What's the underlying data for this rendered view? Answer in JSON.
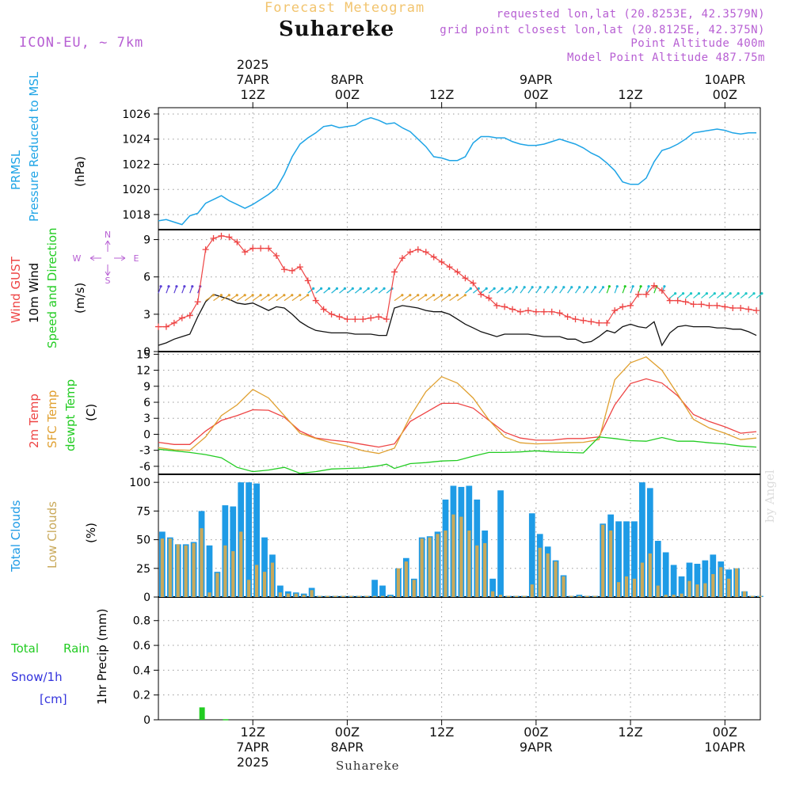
{
  "header": {
    "subtitle": "Forecast Meteogram",
    "location": "Suhareke",
    "model": "ICON-EU, ~ 7km",
    "requested": "requested lon,lat (20.8253E, 42.3579N)",
    "grid_point": "grid point closest lon,lat (20.8125E, 42.375N)",
    "point_altitude": "Point Altitude 400m",
    "model_altitude": "Model Point Altitude 487.75m",
    "watermark": "by Angel",
    "bottom_location": "Suhareke"
  },
  "colors": {
    "pressure": "#1ea4e6",
    "gust": "#ee4444",
    "wind": "#111111",
    "temp2m": "#ee4444",
    "sfc_temp": "#e0a030",
    "dewpt": "#22cc22",
    "total_clouds": "#1e9be6",
    "low_clouds": "#c9a95a",
    "rain": "#22cc22",
    "snow": "#3333dd"
  },
  "time_axis": {
    "top_ticks": [
      {
        "t": 12,
        "lines": [
          "2025",
          "7APR",
          "12Z"
        ]
      },
      {
        "t": 24,
        "lines": [
          "8APR",
          "00Z"
        ]
      },
      {
        "t": 36,
        "lines": [
          "12Z"
        ]
      },
      {
        "t": 48,
        "lines": [
          "9APR",
          "00Z"
        ]
      },
      {
        "t": 60,
        "lines": [
          "12Z"
        ]
      },
      {
        "t": 72,
        "lines": [
          "10APR",
          "00Z"
        ]
      }
    ],
    "bottom_ticks": [
      {
        "t": 12,
        "lines": [
          "12Z",
          "7APR",
          "2025"
        ]
      },
      {
        "t": 24,
        "lines": [
          "00Z",
          "8APR"
        ]
      },
      {
        "t": 36,
        "lines": [
          "12Z"
        ]
      },
      {
        "t": 48,
        "lines": [
          "00Z",
          "9APR"
        ]
      },
      {
        "t": 60,
        "lines": [
          "12Z"
        ]
      },
      {
        "t": 72,
        "lines": [
          "00Z",
          "10APR"
        ]
      }
    ]
  },
  "chart_data": [
    {
      "type": "line",
      "panel": "pressure",
      "labels": [
        "PRMSL",
        "Pressure Reduced to MSL",
        "(hPa)"
      ],
      "x_unit": "hours from 2025-04-07 00Z",
      "ylim": [
        1016.8,
        1026.5
      ],
      "yticks": [
        1018,
        1020,
        1022,
        1024,
        1026
      ],
      "series": [
        {
          "x": [
            0,
            1,
            2,
            3,
            4,
            5,
            6,
            7,
            8,
            9,
            10,
            11,
            12,
            13,
            14,
            15,
            16,
            17,
            18,
            19,
            20,
            21,
            22,
            23,
            24,
            25,
            26,
            27,
            28,
            29,
            30,
            31,
            32,
            33,
            34,
            35,
            36,
            37,
            38,
            39,
            40,
            41,
            42,
            43,
            44,
            45,
            46,
            47,
            48,
            49,
            50,
            51,
            52,
            53,
            54,
            55,
            56,
            57,
            58,
            59,
            60,
            61,
            62,
            63,
            64,
            65,
            66,
            67,
            68,
            69,
            70,
            71,
            72,
            73,
            74,
            75,
            76
          ],
          "y": [
            1017.5,
            1017.6,
            1017.4,
            1017.2,
            1017.9,
            1018.1,
            1018.9,
            1019.2,
            1019.5,
            1019.1,
            1018.8,
            1018.5,
            1018.8,
            1019.2,
            1019.6,
            1020.1,
            1021.2,
            1022.6,
            1023.6,
            1024.1,
            1024.5,
            1025.0,
            1025.1,
            1024.9,
            1025.0,
            1025.1,
            1025.5,
            1025.7,
            1025.5,
            1025.2,
            1025.3,
            1024.9,
            1024.6,
            1024.0,
            1023.4,
            1022.6,
            1022.5,
            1022.3,
            1022.3,
            1022.6,
            1023.7,
            1024.2,
            1024.2,
            1024.1,
            1024.1,
            1023.8,
            1023.6,
            1023.5,
            1023.5,
            1023.6,
            1023.8,
            1024.0,
            1023.8,
            1023.6,
            1023.3,
            1022.9,
            1022.6,
            1022.1,
            1021.5,
            1020.6,
            1020.4,
            1020.4,
            1020.9,
            1022.2,
            1023.1,
            1023.3,
            1023.6,
            1024.0,
            1024.5,
            1024.6,
            1024.7,
            1024.8,
            1024.7,
            1024.5,
            1024.4,
            1024.5,
            1024.5
          ]
        }
      ]
    },
    {
      "type": "line",
      "panel": "wind",
      "labels": [
        "Wind GUST",
        "10m Wind",
        "Speed and Direction",
        "(m/s)"
      ],
      "compass": {
        "n": "N",
        "s": "S",
        "w": "W",
        "e": "E"
      },
      "ylim": [
        0,
        9.8
      ],
      "yticks": [
        0,
        3,
        6,
        9
      ],
      "gust": {
        "x": [
          0,
          1,
          2,
          3,
          4,
          5,
          6,
          7,
          8,
          9,
          10,
          11,
          12,
          13,
          14,
          15,
          16,
          17,
          18,
          19,
          20,
          21,
          22,
          23,
          24,
          25,
          26,
          27,
          28,
          29,
          30,
          31,
          32,
          33,
          34,
          35,
          36,
          37,
          38,
          39,
          40,
          41,
          42,
          43,
          44,
          45,
          46,
          47,
          48,
          49,
          50,
          51,
          52,
          53,
          54,
          55,
          56,
          57,
          58,
          59,
          60,
          61,
          62,
          63,
          64,
          65,
          66,
          67,
          68,
          69,
          70,
          71,
          72,
          73,
          74,
          75,
          76
        ],
        "y": [
          2.0,
          2.0,
          2.3,
          2.7,
          2.9,
          4.0,
          8.2,
          9.1,
          9.3,
          9.2,
          8.8,
          8.0,
          8.3,
          8.3,
          8.3,
          7.7,
          6.6,
          6.5,
          6.8,
          5.7,
          4.1,
          3.4,
          3.0,
          2.8,
          2.6,
          2.6,
          2.6,
          2.7,
          2.8,
          2.6,
          6.4,
          7.5,
          8.0,
          8.2,
          8.0,
          7.6,
          7.2,
          6.8,
          6.4,
          5.9,
          5.5,
          4.6,
          4.3,
          3.7,
          3.6,
          3.4,
          3.2,
          3.3,
          3.2,
          3.2,
          3.2,
          3.1,
          2.8,
          2.6,
          2.5,
          2.4,
          2.3,
          2.3,
          3.3,
          3.6,
          3.7,
          4.6,
          4.6,
          5.3,
          4.9,
          4.1,
          4.1,
          4.0,
          3.8,
          3.8,
          3.7,
          3.7,
          3.6,
          3.5,
          3.5,
          3.4,
          3.3
        ]
      },
      "wind": {
        "x": [
          0,
          1,
          2,
          3,
          4,
          5,
          6,
          7,
          8,
          9,
          10,
          11,
          12,
          13,
          14,
          15,
          16,
          17,
          18,
          19,
          20,
          21,
          22,
          23,
          24,
          25,
          26,
          27,
          28,
          29,
          30,
          31,
          32,
          33,
          34,
          35,
          36,
          37,
          38,
          39,
          40,
          41,
          42,
          43,
          44,
          45,
          46,
          47,
          48,
          49,
          50,
          51,
          52,
          53,
          54,
          55,
          56,
          57,
          58,
          59,
          60,
          61,
          62,
          63,
          64,
          65,
          66,
          67,
          68,
          69,
          70,
          71,
          72,
          73,
          74,
          75,
          76
        ],
        "y": [
          0.5,
          0.7,
          1.0,
          1.2,
          1.4,
          2.8,
          4.0,
          4.6,
          4.4,
          4.2,
          3.9,
          3.8,
          3.9,
          3.6,
          3.3,
          3.6,
          3.5,
          3.0,
          2.4,
          2.0,
          1.7,
          1.6,
          1.5,
          1.5,
          1.5,
          1.4,
          1.4,
          1.4,
          1.3,
          1.3,
          3.5,
          3.7,
          3.6,
          3.5,
          3.3,
          3.2,
          3.2,
          3.0,
          2.6,
          2.2,
          1.9,
          1.6,
          1.4,
          1.2,
          1.4,
          1.4,
          1.4,
          1.4,
          1.3,
          1.2,
          1.2,
          1.2,
          1.0,
          1.0,
          0.7,
          0.8,
          1.2,
          1.7,
          1.5,
          2.0,
          2.2,
          2.0,
          1.9,
          2.4,
          0.5,
          1.5,
          2.0,
          2.1,
          2.0,
          2.0,
          2.0,
          1.9,
          1.9,
          1.8,
          1.8,
          1.6,
          1.3
        ]
      }
    },
    {
      "type": "line",
      "panel": "temperature",
      "labels": [
        "2m Temp",
        "SFC Temp",
        "dewpt Temp",
        "(C)"
      ],
      "ylim": [
        -7.5,
        15.5
      ],
      "yticks": [
        -6,
        -3,
        0,
        3,
        6,
        9,
        12,
        15
      ],
      "series": [
        {
          "key": "temp2m",
          "x": [
            0,
            2,
            4,
            6,
            8,
            10,
            12,
            14,
            16,
            18,
            20,
            22,
            24,
            26,
            28,
            30,
            32,
            34,
            36,
            38,
            40,
            42,
            44,
            46,
            48,
            50,
            52,
            54,
            56,
            58,
            60,
            62,
            64,
            66,
            68,
            70,
            72,
            74,
            76
          ],
          "y": [
            -1.5,
            -1.9,
            -1.9,
            0.6,
            2.6,
            3.5,
            4.6,
            4.5,
            3.2,
            0.6,
            -0.7,
            -1.1,
            -1.4,
            -1.9,
            -2.4,
            -1.8,
            2.4,
            4.1,
            5.8,
            5.8,
            4.9,
            2.6,
            0.4,
            -0.7,
            -1.1,
            -1.1,
            -0.8,
            -0.8,
            -0.5,
            5.5,
            9.5,
            10.4,
            9.6,
            7.2,
            3.7,
            2.4,
            1.4,
            0.2,
            0.5
          ]
        },
        {
          "key": "sfc_temp",
          "x": [
            0,
            2,
            4,
            6,
            8,
            10,
            12,
            14,
            16,
            18,
            20,
            22,
            24,
            26,
            28,
            30,
            32,
            34,
            36,
            38,
            40,
            42,
            44,
            46,
            48,
            50,
            52,
            54,
            56,
            58,
            60,
            62,
            64,
            66,
            68,
            70,
            72,
            74,
            76
          ],
          "y": [
            -2.5,
            -2.9,
            -3.0,
            -0.5,
            3.5,
            5.5,
            8.4,
            6.8,
            3.5,
            0.2,
            -0.8,
            -1.6,
            -2.2,
            -3.1,
            -3.6,
            -2.6,
            3.3,
            8.0,
            10.8,
            9.6,
            6.8,
            2.7,
            -0.5,
            -1.6,
            -1.8,
            -1.7,
            -1.6,
            -1.5,
            -1.0,
            10.2,
            13.4,
            14.5,
            12.0,
            7.5,
            2.8,
            1.2,
            0.2,
            -1.0,
            -0.7
          ]
        },
        {
          "key": "dewpt",
          "x": [
            0,
            2,
            4,
            6,
            8,
            10,
            12,
            14,
            16,
            18,
            20,
            22,
            24,
            26,
            28,
            29,
            30,
            32,
            34,
            36,
            38,
            40,
            42,
            44,
            46,
            48,
            50,
            52,
            54,
            56,
            58,
            60,
            62,
            64,
            66,
            68,
            70,
            72,
            74,
            76
          ],
          "y": [
            -2.8,
            -3.1,
            -3.4,
            -3.8,
            -4.4,
            -6.2,
            -7.0,
            -6.7,
            -6.2,
            -7.3,
            -7.0,
            -6.5,
            -6.4,
            -6.3,
            -5.9,
            -5.6,
            -6.4,
            -5.5,
            -5.3,
            -5.0,
            -4.9,
            -4.1,
            -3.4,
            -3.4,
            -3.3,
            -3.1,
            -3.3,
            -3.4,
            -3.5,
            -0.5,
            -0.8,
            -1.2,
            -1.3,
            -0.6,
            -1.3,
            -1.3,
            -1.6,
            -1.8,
            -2.2,
            -2.4
          ]
        }
      ]
    },
    {
      "type": "bar",
      "panel": "clouds",
      "labels": [
        "Total Clouds",
        "Low Clouds",
        "(%)"
      ],
      "ylim": [
        0,
        107
      ],
      "yticks": [
        0,
        25,
        50,
        75,
        100
      ],
      "x": [
        0,
        1,
        2,
        3,
        4,
        5,
        6,
        7,
        8,
        9,
        10,
        11,
        12,
        13,
        14,
        15,
        16,
        17,
        18,
        19,
        20,
        21,
        22,
        23,
        24,
        25,
        26,
        27,
        28,
        29,
        30,
        31,
        32,
        33,
        34,
        35,
        36,
        37,
        38,
        39,
        40,
        41,
        42,
        43,
        44,
        45,
        46,
        47,
        48,
        49,
        50,
        51,
        52,
        53,
        54,
        55,
        56,
        57,
        58,
        59,
        60,
        61,
        62,
        63,
        64,
        65,
        66,
        67,
        68,
        69,
        70,
        71,
        72,
        73,
        74,
        75,
        76
      ],
      "total": [
        57,
        52,
        46,
        46,
        48,
        75,
        45,
        22,
        80,
        79,
        100,
        100,
        99,
        52,
        37,
        10,
        5,
        4,
        3,
        8,
        1,
        1,
        1,
        1,
        1,
        1,
        1,
        15,
        10,
        2,
        25,
        34,
        16,
        52,
        53,
        57,
        85,
        97,
        96,
        97,
        85,
        58,
        16,
        93,
        1,
        1,
        1,
        73,
        55,
        44,
        32,
        19,
        1,
        2,
        1,
        1,
        64,
        72,
        66,
        66,
        66,
        100,
        95,
        49,
        39,
        28,
        18,
        30,
        29,
        32,
        37,
        31,
        24,
        25,
        5,
        1,
        1
      ],
      "low": [
        51,
        51,
        46,
        45,
        47,
        60,
        4,
        21,
        45,
        40,
        57,
        15,
        28,
        22,
        30,
        4,
        3,
        3,
        2,
        6,
        1,
        1,
        1,
        1,
        1,
        1,
        1,
        1,
        1,
        1,
        25,
        31,
        15,
        51,
        52,
        55,
        58,
        72,
        70,
        58,
        45,
        47,
        5,
        2,
        1,
        1,
        1,
        11,
        43,
        38,
        31,
        18,
        1,
        1,
        1,
        1,
        63,
        58,
        13,
        18,
        16,
        30,
        38,
        10,
        2,
        2,
        3,
        14,
        11,
        12,
        20,
        26,
        16,
        25,
        5,
        1,
        1
      ]
    },
    {
      "type": "bar",
      "panel": "precip",
      "labels": [
        "Total",
        "Rain",
        "Snow/1h",
        "[cm]",
        "1hr Precip (mm)"
      ],
      "ylim": [
        0,
        0.99
      ],
      "yticks": [
        0,
        0.2,
        0.4,
        0.6,
        0.8
      ],
      "x": [
        5,
        8
      ],
      "rain": [
        0.1,
        0.005
      ]
    }
  ]
}
